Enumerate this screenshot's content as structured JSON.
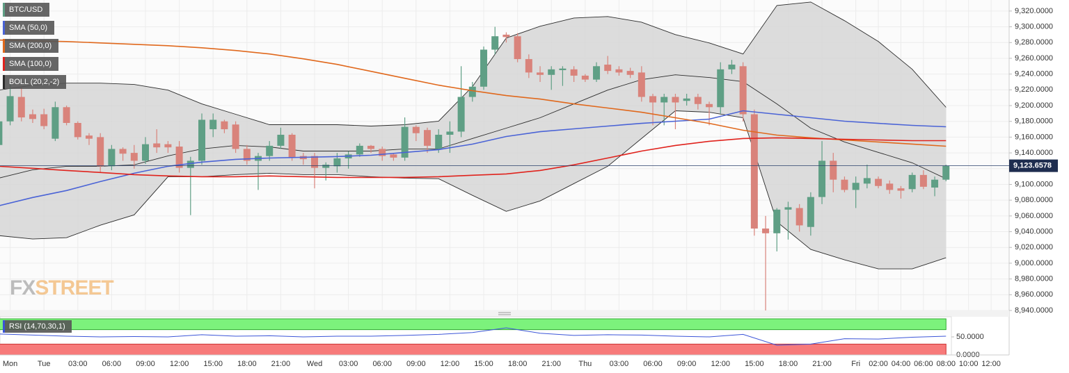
{
  "chart_data": [
    {
      "type": "candlestick",
      "name": "BTC/USD",
      "up_color": "#5f9f85",
      "down_color": "#d9837b",
      "x": [
        -1,
        0,
        1,
        2,
        3,
        4,
        5,
        6,
        7,
        8,
        9,
        10,
        11,
        12,
        13,
        14,
        15,
        16,
        17,
        18,
        19,
        20,
        21,
        22,
        23,
        24,
        25,
        26,
        27,
        28,
        29,
        30,
        31,
        32,
        33,
        34,
        35,
        36,
        37,
        38,
        39,
        40,
        41,
        42,
        43,
        44,
        45,
        46,
        47,
        48,
        49,
        50,
        51,
        52,
        53,
        54,
        55,
        56,
        57,
        58,
        59,
        60,
        61,
        62,
        63,
        64,
        65,
        66,
        67,
        68,
        69,
        70,
        71,
        72,
        73,
        74,
        75,
        76,
        77,
        78,
        79,
        80,
        81,
        82,
        83
      ],
      "open": [
        9150,
        9180,
        9211,
        9189,
        9189,
        9158,
        9198,
        9178,
        9162,
        9160,
        9123,
        9145,
        9140,
        9130,
        9152,
        9151,
        9148,
        9121,
        9130,
        9170,
        9180,
        9176,
        9145,
        9130,
        9136,
        9149,
        9163,
        9136,
        9136,
        9121,
        9123,
        9133,
        9138,
        9149,
        9145,
        9138,
        9134,
        9173,
        9169,
        9145,
        9163,
        9167,
        9211,
        9224,
        9271,
        9290,
        9288,
        9259,
        9242,
        9239,
        9245,
        9246,
        9238,
        9233,
        9252,
        9246,
        9244,
        9242,
        9212,
        9204,
        9211,
        9206,
        9211,
        9202,
        9198,
        9246,
        9250,
        9189,
        9044,
        9038,
        9068,
        9070,
        9046,
        9084,
        9130,
        9106,
        9093,
        9101,
        9107,
        9101,
        9095,
        9094,
        9112,
        9096,
        9106
      ],
      "high": [
        9185,
        9228,
        9224,
        9195,
        9196,
        9205,
        9200,
        9180,
        9165,
        9165,
        9150,
        9147,
        9150,
        9160,
        9170,
        9155,
        9155,
        9135,
        9190,
        9190,
        9182,
        9180,
        9150,
        9140,
        9155,
        9172,
        9165,
        9140,
        9140,
        9128,
        9140,
        9142,
        9152,
        9150,
        9148,
        9140,
        9185,
        9175,
        9172,
        9170,
        9180,
        9250,
        9230,
        9275,
        9300,
        9293,
        9292,
        9265,
        9250,
        9250,
        9250,
        9250,
        9240,
        9255,
        9263,
        9250,
        9248,
        9250,
        9215,
        9215,
        9215,
        9215,
        9215,
        9205,
        9255,
        9258,
        9255,
        9195,
        9060,
        9070,
        9078,
        9075,
        9090,
        9155,
        9140,
        9110,
        9110,
        9125,
        9110,
        9105,
        9098,
        9115,
        9118,
        9110,
        9125
      ],
      "low": [
        9145,
        9175,
        9180,
        9178,
        9170,
        9155,
        9175,
        9157,
        9150,
        9115,
        9118,
        9130,
        9120,
        9126,
        9140,
        9140,
        9115,
        9061,
        9125,
        9160,
        9165,
        9140,
        9125,
        9093,
        9130,
        9145,
        9130,
        9125,
        9095,
        9105,
        9115,
        9120,
        9135,
        9140,
        9130,
        9130,
        9130,
        9155,
        9140,
        9140,
        9140,
        9160,
        9205,
        9220,
        9265,
        9280,
        9255,
        9235,
        9230,
        9220,
        9225,
        9230,
        9230,
        9230,
        9240,
        9238,
        9235,
        9205,
        9175,
        9175,
        9170,
        9200,
        9195,
        9175,
        9190,
        9240,
        9180,
        9035,
        8940,
        9015,
        9030,
        9040,
        9035,
        9075,
        9090,
        9090,
        9070,
        9095,
        9095,
        9088,
        9082,
        9090,
        9094,
        9085,
        9104
      ],
      "close": [
        9180,
        9212,
        9185,
        9183,
        9174,
        9198,
        9178,
        9160,
        9158,
        9123,
        9145,
        9139,
        9130,
        9151,
        9147,
        9147,
        9121,
        9130,
        9182,
        9182,
        9170,
        9145,
        9130,
        9136,
        9149,
        9163,
        9134,
        9132,
        9121,
        9125,
        9133,
        9138,
        9149,
        9145,
        9136,
        9134,
        9173,
        9165,
        9149,
        9163,
        9167,
        9211,
        9224,
        9271,
        9288,
        9287,
        9259,
        9242,
        9239,
        9246,
        9247,
        9238,
        9233,
        9250,
        9244,
        9242,
        9239,
        9211,
        9204,
        9211,
        9204,
        9209,
        9202,
        9198,
        9246,
        9252,
        9189,
        9044,
        9038,
        9068,
        9071,
        9048,
        9084,
        9130,
        9106,
        9093,
        9102,
        9108,
        9098,
        9093,
        9092,
        9112,
        9097,
        9106,
        9123.6578
      ],
      "last_value_label": "9,123.6578",
      "line_x": [
        -1,
        2,
        5,
        8,
        11,
        14,
        17,
        20,
        23,
        26,
        29,
        32,
        35,
        38,
        41,
        44,
        47,
        50,
        53,
        56,
        59,
        62,
        65,
        68,
        71,
        74,
        77,
        80,
        83
      ],
      "overlays": [
        {
          "name": "SMA (50,0)",
          "color": "#4a63d6",
          "values": [
            9072.9,
            9083.4,
            9092.2,
            9103.6,
            9114.2,
            9123.0,
            9128.3,
            9131.8,
            9133.5,
            9134.4,
            9135.3,
            9137.0,
            9140.6,
            9144.1,
            9151.1,
            9160.8,
            9166.9,
            9170.5,
            9174.0,
            9177.5,
            9180.2,
            9182.8,
            9193.4,
            9189.0,
            9184.6,
            9180.2,
            9177.5,
            9174.9,
            9173.1
          ]
        },
        {
          "name": "SMA (200,0)",
          "color": "#e0681c",
          "values": [
            9283.1,
            9282.2,
            9281.3,
            9279.5,
            9277.8,
            9276.0,
            9273.4,
            9269.9,
            9265.5,
            9259.3,
            9252.3,
            9243.5,
            9234.7,
            9225.9,
            9218.9,
            9212.7,
            9208.3,
            9202.1,
            9196.9,
            9191.6,
            9184.6,
            9177.5,
            9168.7,
            9162.6,
            9159.1,
            9156.4,
            9153.8,
            9151.2,
            9148.5
          ]
        },
        {
          "name": "SMA (100,0)",
          "color": "#e0221c",
          "values": [
            9123.0,
            9120.4,
            9117.7,
            9115.1,
            9112.4,
            9110.7,
            9109.8,
            9109.8,
            9110.7,
            9109.8,
            9108.9,
            9108.9,
            9108.9,
            9109.8,
            9111.6,
            9113.3,
            9117.7,
            9124.8,
            9133.5,
            9142.3,
            9149.4,
            9154.7,
            9158.2,
            9159.1,
            9158.2,
            9157.3,
            9156.4,
            9155.5,
            9155.5
          ]
        }
      ],
      "bollinger": {
        "name": "BOLL (20,2,-2)",
        "color": "#2b2b2b",
        "fill": "#d6d6d6",
        "upper": [
          9219.7,
          9225.9,
          9228.5,
          9228.5,
          9226.8,
          9219.7,
          9202.1,
          9189.0,
          9175.8,
          9175.8,
          9175.8,
          9174.0,
          9175.8,
          9180.2,
          9224.1,
          9285.7,
          9300.7,
          9311.2,
          9313.0,
          9305.9,
          9290.1,
          9279.5,
          9265.5,
          9327.0,
          9331.4,
          9307.7,
          9281.3,
          9246.1,
          9197.8
        ],
        "middle": [
          9108.0,
          9118.6,
          9123.0,
          9123.0,
          9124.8,
          9136.2,
          9145.0,
          9149.4,
          9147.6,
          9142.3,
          9142.3,
          9142.3,
          9145.0,
          9145.0,
          9158.2,
          9171.4,
          9184.6,
          9202.1,
          9219.7,
          9232.9,
          9239.1,
          9235.6,
          9230.3,
          9202.1,
          9171.4,
          9153.8,
          9140.6,
          9127.4,
          9107.2
        ],
        "lower": [
          9035.0,
          9030.7,
          9032.4,
          9048.2,
          9061.4,
          9109.8,
          9109.8,
          9112.4,
          9114.2,
          9112.4,
          9112.4,
          9109.8,
          9108.0,
          9107.2,
          9086.1,
          9065.8,
          9079.0,
          9101.0,
          9123.0,
          9158.2,
          9193.4,
          9191.6,
          9184.6,
          9052.6,
          9017.5,
          9004.3,
          8992.8,
          8992.8,
          9006.9
        ]
      },
      "xlim": [
        -0.9,
        88.6
      ],
      "ylim": [
        8940,
        9334
      ],
      "xticks": [
        {
          "value": 0,
          "label": "Mon"
        },
        {
          "value": 3,
          "label": "Tue"
        },
        {
          "value": 6,
          "label": "03:00"
        },
        {
          "value": 9,
          "label": "06:00"
        },
        {
          "value": 12,
          "label": "09:00"
        },
        {
          "value": 15,
          "label": "12:00"
        },
        {
          "value": 18,
          "label": "15:00"
        },
        {
          "value": 21,
          "label": "18:00"
        },
        {
          "value": 24,
          "label": "21:00"
        },
        {
          "value": 27,
          "label": "Wed"
        },
        {
          "value": 30,
          "label": "03:00"
        },
        {
          "value": 33,
          "label": "06:00"
        },
        {
          "value": 36,
          "label": "09:00"
        },
        {
          "value": 39,
          "label": "12:00"
        },
        {
          "value": 42,
          "label": "15:00"
        },
        {
          "value": 45,
          "label": "18:00"
        },
        {
          "value": 48,
          "label": "21:00"
        },
        {
          "value": 51,
          "label": "Thu"
        },
        {
          "value": 54,
          "label": "03:00"
        },
        {
          "value": 57,
          "label": "06:00"
        },
        {
          "value": 60,
          "label": "09:00"
        },
        {
          "value": 63,
          "label": "12:00"
        },
        {
          "value": 66,
          "label": "15:00"
        },
        {
          "value": 69,
          "label": "18:00"
        },
        {
          "value": 72,
          "label": "21:00"
        },
        {
          "value": 75,
          "label": "Fri"
        },
        {
          "value": 77,
          "label": "02:00"
        },
        {
          "value": 79,
          "label": "04:00"
        },
        {
          "value": 81,
          "label": "06:00"
        },
        {
          "value": 83,
          "label": "08:00"
        },
        {
          "value": 85,
          "label": "10:00"
        },
        {
          "value": 87,
          "label": "12:00"
        }
      ],
      "yticks": [
        {
          "value": 9320,
          "label": "9,320.0000"
        },
        {
          "value": 9300,
          "label": "9,300.0000"
        },
        {
          "value": 9280,
          "label": "9,280.0000"
        },
        {
          "value": 9260,
          "label": "9,260.0000"
        },
        {
          "value": 9240,
          "label": "9,240.0000"
        },
        {
          "value": 9220,
          "label": "9,220.0000"
        },
        {
          "value": 9200,
          "label": "9,200.0000"
        },
        {
          "value": 9180,
          "label": "9,180.0000"
        },
        {
          "value": 9160,
          "label": "9,160.0000"
        },
        {
          "value": 9140,
          "label": "9,140.0000"
        },
        {
          "value": 9120,
          "label": "9,120.0000"
        },
        {
          "value": 9100,
          "label": "9,100.0000"
        },
        {
          "value": 9080,
          "label": "9,080.0000"
        },
        {
          "value": 9060,
          "label": "9,060.0000"
        },
        {
          "value": 9040,
          "label": "9,040.0000"
        },
        {
          "value": 9020,
          "label": "9,020.0000"
        },
        {
          "value": 9000,
          "label": "9,000.0000"
        },
        {
          "value": 8980,
          "label": "8,980.0000"
        },
        {
          "value": 8960,
          "label": "8,960.0000"
        },
        {
          "value": 8940,
          "label": "8,940.0000"
        }
      ],
      "grid": true,
      "watermark": {
        "prefix": "FX",
        "suffix": "STREET"
      }
    },
    {
      "type": "line",
      "name": "RSI (14,70,30,1)",
      "color": "#3b55d8",
      "values": [
        58,
        55,
        52,
        50,
        51,
        50,
        56,
        52,
        53,
        50,
        52,
        52,
        54,
        57,
        62,
        75,
        60,
        54,
        56,
        55,
        52,
        50,
        57,
        27,
        30,
        45,
        44,
        49,
        52
      ],
      "upper_band": 70,
      "lower_band": 30,
      "upper_color": "#7cf27c",
      "lower_color": "#f77a7a",
      "ylim": [
        0,
        100
      ],
      "yticks": [
        {
          "value": 50,
          "label": "50.0000"
        },
        {
          "value": 0,
          "label": "0.0000"
        }
      ]
    }
  ]
}
